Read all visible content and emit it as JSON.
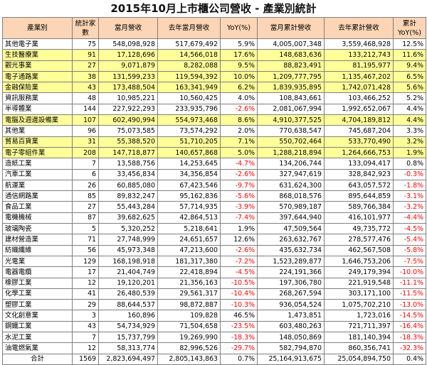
{
  "title": "2015年10月上市櫃公司營收 - 產業別統計",
  "headers": [
    "產業別",
    "統計家數",
    "當月營收",
    "去年當月營收",
    "YoY(%)",
    "當月累計營收",
    "去年累計營收",
    "累計YoY(%)"
  ],
  "rows": [
    {
      "name": "其他電子業",
      "count": "75",
      "cur": "548,098,928",
      "prev": "517,679,492",
      "yoy": "5.9%",
      "cum": "4,005,007,348",
      "prevcum": "3,559,468,928",
      "cumyoy": "12.5%",
      "hl": false
    },
    {
      "name": "生技醫療業",
      "count": "91",
      "cur": "17,128,696",
      "prev": "14,566,018",
      "yoy": "17.6%",
      "cum": "148,683,636",
      "prevcum": "133,212,743",
      "cumyoy": "11.6%",
      "hl": true
    },
    {
      "name": "觀光事業",
      "count": "27",
      "cur": "9,071,879",
      "prev": "8,282,088",
      "yoy": "9.5%",
      "cum": "88,823,491",
      "prevcum": "81,195,977",
      "cumyoy": "9.4%",
      "hl": true
    },
    {
      "name": "電子通路業",
      "count": "38",
      "cur": "131,599,233",
      "prev": "119,594,392",
      "yoy": "10.0%",
      "cum": "1,209,777,795",
      "prevcum": "1,135,467,202",
      "cumyoy": "6.5%",
      "hl": true
    },
    {
      "name": "金融保險業",
      "count": "43",
      "cur": "173,488,504",
      "prev": "163,341,949",
      "yoy": "6.2%",
      "cum": "1,839,935,895",
      "prevcum": "1,742,071,428",
      "cumyoy": "5.6%",
      "hl": true
    },
    {
      "name": "資訊服務業",
      "count": "48",
      "cur": "10,985,221",
      "prev": "10,560,425",
      "yoy": "4.0%",
      "cum": "108,843,661",
      "prevcum": "103,466,252",
      "cumyoy": "5.2%",
      "hl": false
    },
    {
      "name": "半導體業",
      "count": "144",
      "cur": "227,922,293",
      "prev": "233,935,796",
      "yoy": "-2.6%",
      "cum": "2,081,067,994",
      "prevcum": "1,992,652,067",
      "cumyoy": "4.4%",
      "hl": false
    },
    {
      "name": "電腦及週邊設備業",
      "count": "107",
      "cur": "602,490,994",
      "prev": "554,973,468",
      "yoy": "8.6%",
      "cum": "4,910,377,525",
      "prevcum": "4,704,189,812",
      "cumyoy": "4.4%",
      "hl": true
    },
    {
      "name": "其他業",
      "count": "96",
      "cur": "75,073,585",
      "prev": "73,574,292",
      "yoy": "2.0%",
      "cum": "770,638,547",
      "prevcum": "745,687,204",
      "cumyoy": "3.3%",
      "hl": false
    },
    {
      "name": "貿易百貨業",
      "count": "31",
      "cur": "55,388,520",
      "prev": "51,710,205",
      "yoy": "7.1%",
      "cum": "550,702,464",
      "prevcum": "533,770,490",
      "cumyoy": "3.2%",
      "hl": true
    },
    {
      "name": "電子零組件業",
      "count": "208",
      "cur": "147,718,877",
      "prev": "140,657,868",
      "yoy": "5.0%",
      "cum": "1,288,218,894",
      "prevcum": "1,264,666,753",
      "cumyoy": "1.9%",
      "hl": true
    },
    {
      "name": "造紙工業",
      "count": "7",
      "cur": "13,588,756",
      "prev": "14,253,645",
      "yoy": "-4.7%",
      "cum": "134,206,744",
      "prevcum": "133,094,417",
      "cumyoy": "0.8%",
      "hl": false
    },
    {
      "name": "汽車工業",
      "count": "6",
      "cur": "33,456,834",
      "prev": "34,356,854",
      "yoy": "-2.6%",
      "cum": "327,947,619",
      "prevcum": "328,842,923",
      "cumyoy": "-0.3%",
      "hl": false
    },
    {
      "name": "航運業",
      "count": "26",
      "cur": "60,885,080",
      "prev": "67,423,546",
      "yoy": "-9.7%",
      "cum": "631,624,300",
      "prevcum": "643,057,572",
      "cumyoy": "-1.8%",
      "hl": false
    },
    {
      "name": "通信網路業",
      "count": "85",
      "cur": "89,832,247",
      "prev": "95,162,836",
      "yoy": "-5.6%",
      "cum": "868,018,576",
      "prevcum": "895,644,859",
      "cumyoy": "-3.1%",
      "hl": false
    },
    {
      "name": "食品工業",
      "count": "27",
      "cur": "55,443,284",
      "prev": "57,714,935",
      "yoy": "-3.9%",
      "cum": "570,989,187",
      "prevcum": "589,766,384",
      "cumyoy": "-3.2%",
      "hl": false
    },
    {
      "name": "電機機械",
      "count": "87",
      "cur": "39,682,625",
      "prev": "42,864,513",
      "yoy": "-7.4%",
      "cum": "397,644,940",
      "prevcum": "416,101,977",
      "cumyoy": "-4.4%",
      "hl": false
    },
    {
      "name": "玻璃陶瓷",
      "count": "5",
      "cur": "5,320,252",
      "prev": "5,218,641",
      "yoy": "1.9%",
      "cum": "47,509,564",
      "prevcum": "49,735,772",
      "cumyoy": "-4.5%",
      "hl": false
    },
    {
      "name": "建材營造業",
      "count": "71",
      "cur": "27,748,999",
      "prev": "24,651,657",
      "yoy": "12.6%",
      "cum": "263,632,767",
      "prevcum": "278,577,476",
      "cumyoy": "-5.4%",
      "hl": false
    },
    {
      "name": "紡織纖維",
      "count": "56",
      "cur": "45,973,348",
      "prev": "47,213,600",
      "yoy": "-2.6%",
      "cum": "435,632,734",
      "prevcum": "462,567,508",
      "cumyoy": "-5.8%",
      "hl": false
    },
    {
      "name": "光電業",
      "count": "129",
      "cur": "168,198,918",
      "prev": "181,317,380",
      "yoy": "-7.2%",
      "cum": "1,523,289,877",
      "prevcum": "1,646,753,206",
      "cumyoy": "-7.5%",
      "hl": false
    },
    {
      "name": "電器電纜",
      "count": "17",
      "cur": "21,404,749",
      "prev": "22,418,894",
      "yoy": "-4.5%",
      "cum": "224,191,366",
      "prevcum": "249,179,394",
      "cumyoy": "-10.0%",
      "hl": false
    },
    {
      "name": "橡膠工業",
      "count": "12",
      "cur": "19,120,201",
      "prev": "21,356,163",
      "yoy": "-10.5%",
      "cum": "197,306,780",
      "prevcum": "221,919,548",
      "cumyoy": "-11.1%",
      "hl": false
    },
    {
      "name": "化學工業",
      "count": "41",
      "cur": "26,480,539",
      "prev": "29,561,317",
      "yoy": "-10.4%",
      "cum": "268,267,594",
      "prevcum": "303,171,100",
      "cumyoy": "-11.5%",
      "hl": false
    },
    {
      "name": "塑膠工業",
      "count": "29",
      "cur": "88,644,537",
      "prev": "98,872,887",
      "yoy": "-10.3%",
      "cum": "936,054,524",
      "prevcum": "1,075,702,210",
      "cumyoy": "-13.0%",
      "hl": false
    },
    {
      "name": "文化創意業",
      "count": "3",
      "cur": "160,896",
      "prev": "109,828",
      "yoy": "46.5%",
      "cum": "1,473,851",
      "prevcum": "1,723,016",
      "cumyoy": "-14.5%",
      "hl": false
    },
    {
      "name": "鋼鐵工業",
      "count": "43",
      "cur": "54,734,929",
      "prev": "71,504,658",
      "yoy": "-23.5%",
      "cum": "603,480,263",
      "prevcum": "721,711,397",
      "cumyoy": "-16.4%",
      "hl": false
    },
    {
      "name": "水泥工業",
      "count": "7",
      "cur": "15,737,799",
      "prev": "19,269,990",
      "yoy": "-18.3%",
      "cum": "148,050,869",
      "prevcum": "181,140,394",
      "cumyoy": "-18.3%",
      "hl": false
    },
    {
      "name": "油電燃氣業",
      "count": "12",
      "cur": "58,313,774",
      "prev": "82,996,526",
      "yoy": "-29.7%",
      "cum": "582,794,870",
      "prevcum": "860,356,741",
      "cumyoy": "-32.3%",
      "hl": false
    }
  ],
  "total": {
    "name": "合計",
    "count": "1569",
    "cur": "2,823,694,497",
    "prev": "2,805,143,863",
    "yoy": "0.7%",
    "cum": "25,164,913,675",
    "prevcum": "25,054,894,750",
    "cumyoy": "0.4%"
  },
  "colors": {
    "header_bg": "#fbd5b5",
    "highlight_bg": "#ffff99",
    "negative_text": "#ff0000",
    "border": "#7f7f7f"
  }
}
